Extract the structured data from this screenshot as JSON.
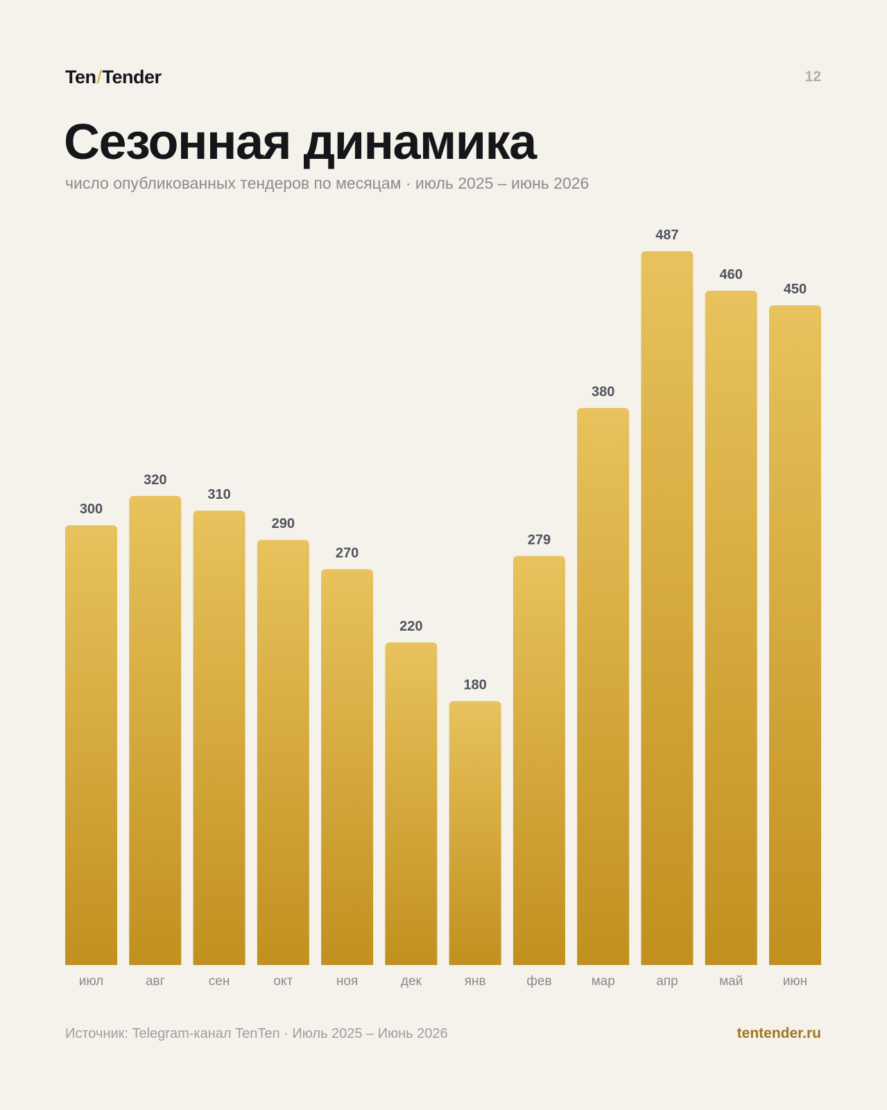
{
  "header": {
    "brand_left": "Ten",
    "brand_slash": "/",
    "brand_right": "Tender",
    "page_number": "12"
  },
  "footer": {
    "source": "Источник: Telegram-канал TenTen · Июль 2025 – Июнь 2026",
    "site": "tentender.ru"
  },
  "colors": {
    "background": "#f5f2eb",
    "bar_top": "#e8c25d",
    "bar_bottom": "#c1901f",
    "value_label": "#4e535c",
    "category_label": "#8b8b8b",
    "accent": "#a1761d"
  },
  "chart_data": {
    "type": "bar",
    "title": "Сезонная динамика",
    "subtitle": "число опубликованных тендеров по месяцам · июль 2025 – июнь 2026",
    "categories": [
      "июл",
      "авг",
      "сен",
      "окт",
      "ноя",
      "дек",
      "янв",
      "фев",
      "мар",
      "апр",
      "май",
      "июн"
    ],
    "values": [
      300,
      320,
      310,
      290,
      270,
      220,
      180,
      279,
      380,
      487,
      460,
      450
    ],
    "xlabel": "",
    "ylabel": "",
    "grid": false,
    "legend": "none"
  }
}
